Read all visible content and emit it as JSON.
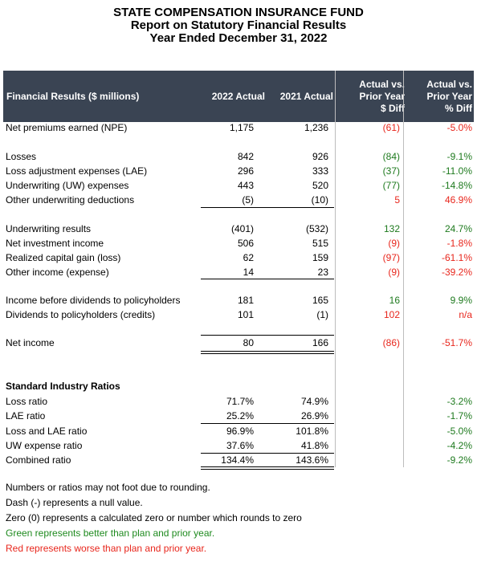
{
  "header": {
    "line1": "STATE COMPENSATION INSURANCE FUND",
    "line2": "Report on Statutory Financial Results",
    "line3": "Year Ended December 31, 2022"
  },
  "table_head": {
    "metric": "Financial Results ($ millions)",
    "c2022": "2022 Actual",
    "c2021": "2021 Actual",
    "diff_l1": "Actual vs.",
    "diff_l2": "Prior Year",
    "diff_l3": "$ Diff",
    "pct_l1": "Actual vs.",
    "pct_l2": "Prior Year",
    "pct_l3": "% Diff"
  },
  "results": [
    {
      "label": "Net premiums earned (NPE)",
      "a2022": "1,175",
      "a2021": "1,236",
      "diff": "(61)",
      "pct": "-5.0%",
      "color": "red"
    },
    {
      "label": "Losses",
      "a2022": "842",
      "a2021": "926",
      "diff": "(84)",
      "pct": "-9.1%",
      "color": "green"
    },
    {
      "label": "Loss adjustment expenses (LAE)",
      "a2022": "296",
      "a2021": "333",
      "diff": "(37)",
      "pct": "-11.0%",
      "color": "green"
    },
    {
      "label": "Underwriting (UW) expenses",
      "a2022": "443",
      "a2021": "520",
      "diff": "(77)",
      "pct": "-14.8%",
      "color": "green"
    },
    {
      "label": "Other underwriting deductions",
      "a2022": "(5)",
      "a2021": "(10)",
      "diff": "5",
      "pct": "46.9%",
      "color": "red"
    },
    {
      "label": "Underwriting results",
      "a2022": "(401)",
      "a2021": "(532)",
      "diff": "132",
      "pct": "24.7%",
      "color": "green"
    },
    {
      "label": "Net investment income",
      "a2022": "506",
      "a2021": "515",
      "diff": "(9)",
      "pct": "-1.8%",
      "color": "red"
    },
    {
      "label": "Realized capital gain (loss)",
      "a2022": "62",
      "a2021": "159",
      "diff": "(97)",
      "pct": "-61.1%",
      "color": "red"
    },
    {
      "label": "Other income (expense)",
      "a2022": "14",
      "a2021": "23",
      "diff": "(9)",
      "pct": "-39.2%",
      "color": "red"
    },
    {
      "label": "Income before dividends to policyholders",
      "a2022": "181",
      "a2021": "165",
      "diff": "16",
      "pct": "9.9%",
      "color": "green"
    },
    {
      "label": "Dividends to policyholders (credits)",
      "a2022": "101",
      "a2021": "(1)",
      "diff": "102",
      "pct": "n/a",
      "color": "red"
    },
    {
      "label": "Net income",
      "a2022": "80",
      "a2021": "166",
      "diff": "(86)",
      "pct": "-51.7%",
      "color": "red"
    }
  ],
  "ratios_title": "Standard Industry Ratios",
  "ratios": [
    {
      "label": "Loss ratio",
      "a2022": "71.7%",
      "a2021": "74.9%",
      "pct": "-3.2%",
      "color": "green"
    },
    {
      "label": "LAE ratio",
      "a2022": "25.2%",
      "a2021": "26.9%",
      "pct": "-1.7%",
      "color": "green"
    },
    {
      "label": "Loss and LAE ratio",
      "a2022": "96.9%",
      "a2021": "101.8%",
      "pct": "-5.0%",
      "color": "green"
    },
    {
      "label": "UW expense ratio",
      "a2022": "37.6%",
      "a2021": "41.8%",
      "pct": "-4.2%",
      "color": "green"
    },
    {
      "label": "Combined ratio",
      "a2022": "134.4%",
      "a2021": "143.6%",
      "pct": "-9.2%",
      "color": "green"
    }
  ],
  "notes": [
    "Numbers or ratios may not foot due to rounding.",
    "Dash (-) represents a null value.",
    "Zero (0) represents a calculated zero or number which rounds to zero",
    "Green represents better than plan and prior year.",
    "Red represents worse than plan and prior year."
  ]
}
